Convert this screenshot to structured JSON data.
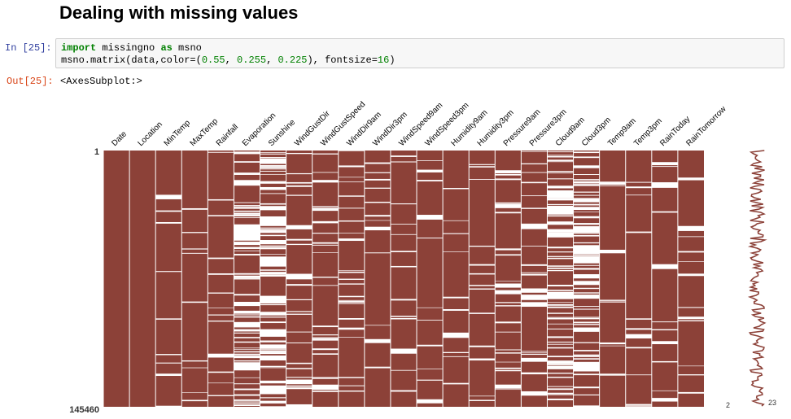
{
  "notebook": {
    "section_title": "Dealing with missing values",
    "cell_prompt_in": "In [25]:",
    "code_line1": {
      "kw1": "import",
      "t1": " missingno ",
      "kw2": "as",
      "t2": " msno"
    },
    "code_line2": {
      "t1": "msno.matrix(data,color=(",
      "n1": "0.55",
      "c1": ", ",
      "n2": "0.255",
      "c2": ", ",
      "n3": "0.225",
      "t2": "), fontsize=",
      "n4": "16",
      "t3": ")"
    },
    "cell_prompt_out": "Out[25]:",
    "output_text": "<AxesSubplot:>"
  },
  "chart_data": {
    "type": "heatmap",
    "columns": [
      "Date",
      "Location",
      "MinTemp",
      "MaxTemp",
      "Rainfall",
      "Evaporation",
      "Sunshine",
      "WindGustDir",
      "WindGustSpeed",
      "WindDir9am",
      "WindDir3pm",
      "WindSpeed9am",
      "WindSpeed3pm",
      "Humidity9am",
      "Humidity3pm",
      "Pressure9am",
      "Pressure3pm",
      "Cloud9am",
      "Cloud3pm",
      "Temp9am",
      "Temp3pm",
      "RainToday",
      "RainTomorrow"
    ],
    "row_labels": {
      "first": "1",
      "last": "145460"
    },
    "sparkline_labels": {
      "min": "2",
      "max": "23"
    },
    "colors": {
      "present": "#8c4138",
      "missing": "#ffffff"
    }
  }
}
